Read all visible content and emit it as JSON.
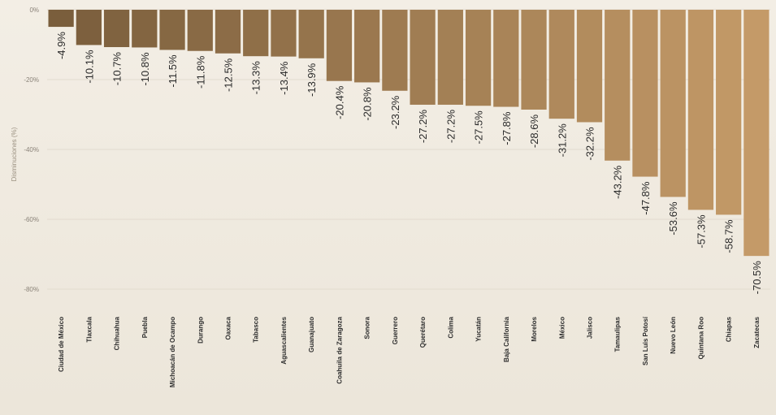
{
  "chart_data": {
    "type": "bar",
    "title": "",
    "xlabel": "",
    "ylabel": "Disminuciones (%)",
    "ylim": [
      -80,
      0
    ],
    "yticks": [
      0,
      -20,
      -40,
      -60,
      -80
    ],
    "ytick_labels": [
      "0%",
      "-20%",
      "-40%",
      "-60%",
      "-80%"
    ],
    "grid": false,
    "colors": {
      "dark": "#7a5e3c",
      "light": "#c49a68"
    },
    "categories": [
      "Ciudad de México",
      "Tlaxcala",
      "Chihuahua",
      "Puebla",
      "Michoacán de Ocampo",
      "Durango",
      "Oaxaca",
      "Tabasco",
      "Aguascalientes",
      "Guanajuato",
      "Coahuila de Zaragoza",
      "Sonora",
      "Guerrero",
      "Querétaro",
      "Colima",
      "Yucatán",
      "Baja California",
      "Morelos",
      "México",
      "Jalisco",
      "Tamaulipas",
      "San Luis Potosí",
      "Nuevo León",
      "Quintana Roo",
      "Chiapas",
      "Zacatecas"
    ],
    "values": [
      -4.9,
      -10.1,
      -10.7,
      -10.8,
      -11.5,
      -11.8,
      -12.5,
      -13.3,
      -13.4,
      -13.9,
      -20.4,
      -20.8,
      -23.2,
      -27.2,
      -27.2,
      -27.5,
      -27.8,
      -28.6,
      -31.2,
      -32.2,
      -43.2,
      -47.8,
      -53.6,
      -57.3,
      -58.7,
      -70.5
    ],
    "value_labels": [
      "-4.9%",
      "-10.1%",
      "-10.7%",
      "-10.8%",
      "-11.5%",
      "-11.8%",
      "-12.5%",
      "-13.3%",
      "-13.4%",
      "-13.9%",
      "-20.4%",
      "-20.8%",
      "-23.2%",
      "-27.2%",
      "-27.2%",
      "-27.5%",
      "-27.8%",
      "-28.6%",
      "-31.2%",
      "-32.2%",
      "-43.2%",
      "-47.8%",
      "-53.6%",
      "-57.3%",
      "-58.7%",
      "-70.5%"
    ]
  }
}
